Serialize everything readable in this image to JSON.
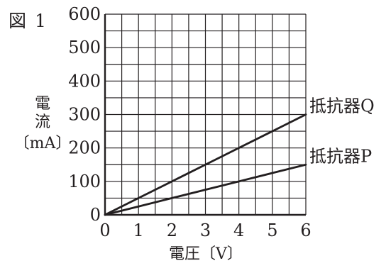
{
  "figure_label": "図 1",
  "chart_data": {
    "type": "line",
    "x": [
      0,
      1,
      2,
      3,
      4,
      5,
      6
    ],
    "series": [
      {
        "name": "抵抗器Q",
        "values": [
          0,
          50,
          100,
          150,
          200,
          250,
          300
        ]
      },
      {
        "name": "抵抗器P",
        "values": [
          0,
          25,
          50,
          75,
          100,
          125,
          150
        ]
      }
    ],
    "xlabel": "電圧〔V〕",
    "ylabel": [
      "電",
      "流",
      "〔mA〕"
    ],
    "xlim": [
      0,
      6
    ],
    "ylim": [
      0,
      600
    ],
    "x_ticks": [
      0,
      1,
      2,
      3,
      4,
      5,
      6
    ],
    "y_ticks": [
      0,
      100,
      200,
      300,
      400,
      500,
      600
    ],
    "x_minor_step": 0.5,
    "y_minor_step": 50,
    "grid": true,
    "legend": "line-end labels",
    "colors": {
      "line": "#231f20",
      "grid": "#231f20"
    }
  }
}
